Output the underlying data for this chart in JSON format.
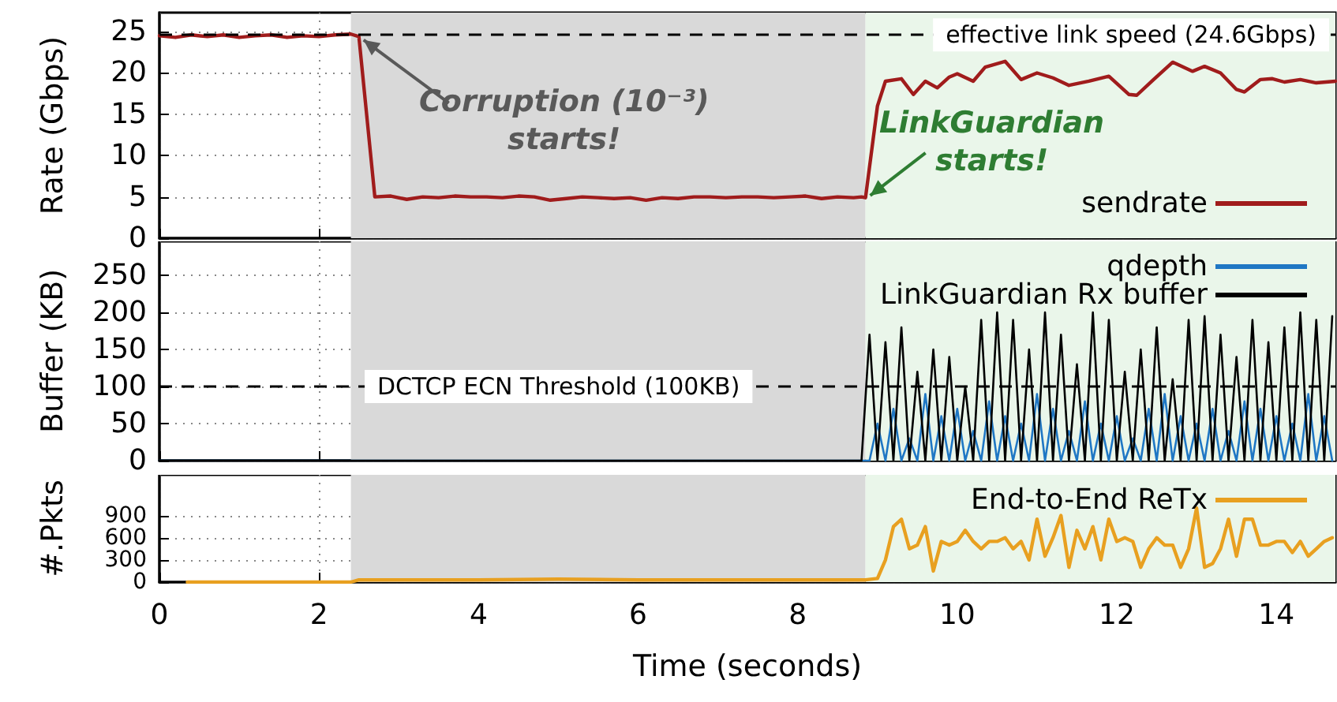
{
  "chart_data": [
    {
      "type": "line",
      "ylabel": "Rate (Gbps)",
      "xlim": [
        0,
        14.74
      ],
      "xticks": [
        0,
        2,
        4,
        6,
        8,
        10,
        12,
        14
      ],
      "ylim": [
        0,
        27.3
      ],
      "yticks": [
        0,
        5,
        10,
        15,
        20,
        25
      ],
      "tick_labels": "y",
      "grid": true,
      "legend": "bottom right",
      "marker": "none",
      "series": [
        {
          "name": "sendrate",
          "color": "#a01c1c",
          "x": [
            0,
            0.2,
            0.4,
            0.6,
            0.8,
            1.0,
            1.2,
            1.4,
            1.6,
            1.8,
            2.0,
            2.2,
            2.4,
            2.5,
            2.7,
            2.9,
            3.1,
            3.3,
            3.5,
            3.7,
            3.9,
            4.1,
            4.3,
            4.5,
            4.7,
            4.9,
            5.1,
            5.3,
            5.5,
            5.7,
            5.9,
            6.1,
            6.3,
            6.5,
            6.7,
            6.9,
            7.1,
            7.3,
            7.5,
            7.7,
            7.9,
            8.1,
            8.3,
            8.5,
            8.7,
            8.8,
            8.85,
            9.0,
            9.1,
            9.3,
            9.45,
            9.6,
            9.75,
            9.9,
            10.0,
            10.2,
            10.35,
            10.6,
            10.8,
            11.0,
            11.2,
            11.4,
            11.65,
            11.9,
            12.15,
            12.25,
            12.45,
            12.7,
            12.95,
            13.1,
            13.3,
            13.5,
            13.6,
            13.8,
            13.95,
            14.1,
            14.3,
            14.5,
            14.74
          ],
          "values": [
            24.5,
            24.3,
            24.6,
            24.4,
            24.6,
            24.3,
            24.5,
            24.6,
            24.3,
            24.5,
            24.4,
            24.6,
            24.7,
            24.4,
            5.0,
            5.1,
            4.7,
            5.0,
            4.9,
            5.1,
            5.0,
            5.0,
            4.9,
            5.1,
            5.0,
            4.6,
            4.8,
            5.0,
            4.9,
            4.8,
            4.9,
            4.6,
            4.9,
            4.8,
            5.0,
            5.0,
            4.9,
            5.0,
            5.0,
            4.9,
            5.0,
            5.1,
            4.8,
            5.0,
            4.9,
            5.0,
            4.9,
            16,
            19.0,
            19.3,
            17.4,
            19.0,
            18.2,
            19.5,
            19.9,
            19.0,
            20.7,
            21.4,
            19.2,
            20.0,
            19.4,
            18.5,
            19.0,
            19.6,
            17.4,
            17.3,
            19.1,
            21.3,
            20.2,
            20.8,
            20.0,
            18.0,
            17.7,
            19.2,
            19.3,
            18.9,
            19.2,
            18.8,
            19.0
          ]
        }
      ],
      "ref_lines": [
        {
          "axis": "y",
          "value": 24.6,
          "label": "effective link speed (24.6Gbps)",
          "color": "#000000",
          "line_style": "dashed"
        }
      ],
      "bands": [
        {
          "axis": "x",
          "from": 2.4,
          "to": 8.85,
          "color": "#d9d9d9"
        },
        {
          "axis": "x",
          "from": 8.85,
          "to": 14.74,
          "color": "#eaf6ea"
        }
      ],
      "annotations": [
        {
          "text": "Corruption (10⁻³) starts!",
          "x": 2.5,
          "y": 24.6
        },
        {
          "text": "LinkGuardian starts!",
          "x": 8.85,
          "y": 4.9
        }
      ]
    },
    {
      "type": "line",
      "ylabel": "Buffer (KB)",
      "xlim": [
        0,
        14.74
      ],
      "xticks": [
        0,
        2,
        4,
        6,
        8,
        10,
        12,
        14
      ],
      "ylim": [
        0,
        296
      ],
      "yticks": [
        0,
        50,
        100,
        150,
        200,
        250
      ],
      "tick_labels": "y",
      "grid": true,
      "legend": "top right",
      "marker": "none",
      "series": [
        {
          "name": "qdepth",
          "color": "#1f77c4",
          "x": [
            0,
            8.8,
            8.9,
            9.0,
            9.1,
            9.2,
            9.3,
            9.4,
            9.5,
            9.6,
            9.7,
            9.8,
            9.9,
            10.0,
            10.1,
            10.2,
            10.3,
            10.4,
            10.5,
            10.6,
            10.7,
            10.8,
            10.9,
            11.0,
            11.1,
            11.2,
            11.3,
            11.4,
            11.5,
            11.6,
            11.7,
            11.8,
            11.9,
            12.0,
            12.1,
            12.2,
            12.3,
            12.4,
            12.5,
            12.6,
            12.7,
            12.8,
            12.9,
            13.0,
            13.1,
            13.2,
            13.3,
            13.4,
            13.5,
            13.6,
            13.7,
            13.8,
            13.9,
            14.0,
            14.1,
            14.2,
            14.3,
            14.4,
            14.5,
            14.6,
            14.7
          ],
          "values": [
            0,
            0,
            0,
            50,
            0,
            70,
            0,
            30,
            0,
            90,
            0,
            60,
            0,
            70,
            0,
            40,
            0,
            80,
            0,
            60,
            0,
            50,
            0,
            90,
            0,
            70,
            0,
            40,
            0,
            80,
            0,
            50,
            0,
            60,
            0,
            30,
            0,
            70,
            0,
            90,
            0,
            60,
            0,
            50,
            0,
            70,
            0,
            40,
            0,
            80,
            0,
            70,
            0,
            60,
            0,
            50,
            0,
            90,
            0,
            60,
            0
          ]
        },
        {
          "name": "LinkGuardian Rx buffer",
          "color": "#000000",
          "x": [
            0,
            8.8,
            8.9,
            9.0,
            9.1,
            9.2,
            9.3,
            9.4,
            9.5,
            9.6,
            9.7,
            9.8,
            9.9,
            10.0,
            10.1,
            10.2,
            10.3,
            10.4,
            10.5,
            10.6,
            10.7,
            10.8,
            10.9,
            11.0,
            11.1,
            11.2,
            11.3,
            11.4,
            11.5,
            11.6,
            11.7,
            11.8,
            11.9,
            12.0,
            12.1,
            12.2,
            12.3,
            12.4,
            12.5,
            12.6,
            12.7,
            12.8,
            12.9,
            13.0,
            13.1,
            13.2,
            13.3,
            13.4,
            13.5,
            13.6,
            13.7,
            13.8,
            13.9,
            14.0,
            14.1,
            14.2,
            14.3,
            14.4,
            14.5,
            14.6,
            14.7
          ],
          "values": [
            0,
            0,
            170,
            0,
            160,
            0,
            180,
            0,
            120,
            0,
            150,
            0,
            140,
            0,
            100,
            0,
            190,
            0,
            200,
            0,
            190,
            0,
            150,
            0,
            200,
            0,
            170,
            0,
            130,
            0,
            200,
            0,
            190,
            0,
            120,
            0,
            150,
            0,
            180,
            0,
            110,
            0,
            190,
            0,
            195,
            0,
            170,
            0,
            140,
            0,
            190,
            0,
            160,
            0,
            180,
            0,
            200,
            0,
            190,
            0,
            195
          ]
        }
      ],
      "ref_lines": [
        {
          "axis": "y",
          "value": 100,
          "label": "DCTCP ECN Threshold (100KB)",
          "color": "#000000",
          "line_style": "dashed"
        }
      ],
      "bands": [
        {
          "axis": "x",
          "from": 2.4,
          "to": 8.85,
          "color": "#d9d9d9"
        },
        {
          "axis": "x",
          "from": 8.85,
          "to": 14.74,
          "color": "#eaf6ea"
        }
      ]
    },
    {
      "type": "line",
      "ylabel": "#.Pkts",
      "xlabel": "Time (seconds)",
      "xlim": [
        0,
        14.74
      ],
      "xticks": [
        0,
        2,
        4,
        6,
        8,
        10,
        12,
        14
      ],
      "ylim": [
        0,
        1450
      ],
      "yticks": [
        0,
        300,
        600,
        900
      ],
      "grid": true,
      "legend": "top right",
      "marker": "none",
      "series": [
        {
          "name": "End-to-End ReTx",
          "color": "#e8a020",
          "x": [
            0.35,
            2.4,
            2.5,
            4.0,
            5.0,
            6.0,
            7.0,
            8.0,
            8.85,
            9.0,
            9.1,
            9.2,
            9.3,
            9.4,
            9.5,
            9.6,
            9.7,
            9.8,
            9.9,
            10.0,
            10.1,
            10.2,
            10.3,
            10.4,
            10.5,
            10.6,
            10.7,
            10.8,
            10.9,
            11.0,
            11.1,
            11.2,
            11.3,
            11.4,
            11.5,
            11.6,
            11.7,
            11.8,
            11.9,
            12.0,
            12.1,
            12.2,
            12.3,
            12.4,
            12.5,
            12.6,
            12.7,
            12.8,
            12.9,
            13.0,
            13.1,
            13.2,
            13.3,
            13.4,
            13.5,
            13.6,
            13.7,
            13.8,
            13.9,
            14.0,
            14.1,
            14.2,
            14.3,
            14.4,
            14.5,
            14.6,
            14.7
          ],
          "values": [
            0,
            0,
            30,
            30,
            40,
            30,
            30,
            30,
            30,
            50,
            300,
            750,
            850,
            450,
            500,
            750,
            150,
            550,
            500,
            550,
            700,
            550,
            450,
            550,
            550,
            600,
            450,
            550,
            300,
            850,
            350,
            600,
            900,
            200,
            700,
            450,
            750,
            300,
            850,
            550,
            600,
            550,
            200,
            450,
            600,
            500,
            500,
            200,
            450,
            1000,
            200,
            250,
            450,
            850,
            350,
            850,
            850,
            500,
            500,
            550,
            550,
            400,
            550,
            350,
            450,
            550,
            600
          ]
        }
      ],
      "bands": [
        {
          "axis": "x",
          "from": 2.4,
          "to": 8.85,
          "color": "#d9d9d9"
        },
        {
          "axis": "x",
          "from": 8.85,
          "to": 14.74,
          "color": "#eaf6ea"
        }
      ]
    }
  ]
}
